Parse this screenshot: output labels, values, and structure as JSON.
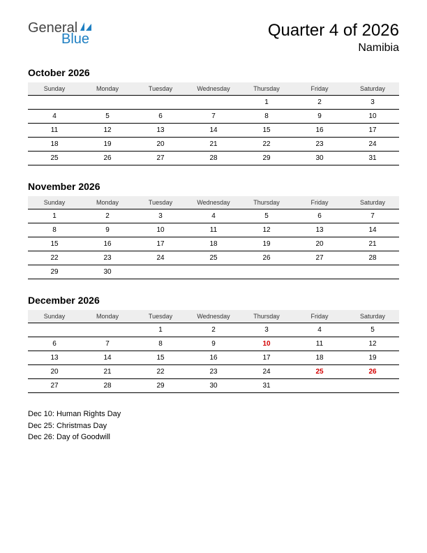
{
  "logo": {
    "line1": "General",
    "line2": "Blue",
    "color_general": "#444444",
    "color_blue": "#1e7fc2",
    "sail_color": "#1e7fc2"
  },
  "header": {
    "title": "Quarter 4 of 2026",
    "subtitle": "Namibia"
  },
  "day_headers": [
    "Sunday",
    "Monday",
    "Tuesday",
    "Wednesday",
    "Thursday",
    "Friday",
    "Saturday"
  ],
  "months": [
    {
      "name": "October 2026",
      "weeks": [
        [
          "",
          "",
          "",
          "",
          "1",
          "2",
          "3"
        ],
        [
          "4",
          "5",
          "6",
          "7",
          "8",
          "9",
          "10"
        ],
        [
          "11",
          "12",
          "13",
          "14",
          "15",
          "16",
          "17"
        ],
        [
          "18",
          "19",
          "20",
          "21",
          "22",
          "23",
          "24"
        ],
        [
          "25",
          "26",
          "27",
          "28",
          "29",
          "30",
          "31"
        ]
      ],
      "holidays": []
    },
    {
      "name": "November 2026",
      "weeks": [
        [
          "1",
          "2",
          "3",
          "4",
          "5",
          "6",
          "7"
        ],
        [
          "8",
          "9",
          "10",
          "11",
          "12",
          "13",
          "14"
        ],
        [
          "15",
          "16",
          "17",
          "18",
          "19",
          "20",
          "21"
        ],
        [
          "22",
          "23",
          "24",
          "25",
          "26",
          "27",
          "28"
        ],
        [
          "29",
          "30",
          "",
          "",
          "",
          "",
          ""
        ]
      ],
      "holidays": []
    },
    {
      "name": "December 2026",
      "weeks": [
        [
          "",
          "",
          "1",
          "2",
          "3",
          "4",
          "5"
        ],
        [
          "6",
          "7",
          "8",
          "9",
          "10",
          "11",
          "12"
        ],
        [
          "13",
          "14",
          "15",
          "16",
          "17",
          "18",
          "19"
        ],
        [
          "20",
          "21",
          "22",
          "23",
          "24",
          "25",
          "26"
        ],
        [
          "27",
          "28",
          "29",
          "30",
          "31",
          "",
          ""
        ]
      ],
      "holidays": [
        "10",
        "25",
        "26"
      ]
    }
  ],
  "holiday_list": [
    "Dec 10: Human Rights Day",
    "Dec 25: Christmas Day",
    "Dec 26: Day of Goodwill"
  ],
  "style": {
    "header_bg": "#eeeeee",
    "border_color": "#000000",
    "holiday_color": "#d40000",
    "text_color": "#000000",
    "font_family": "Arial",
    "month_title_fontsize": 14,
    "day_header_fontsize": 9,
    "cell_fontsize": 10
  }
}
